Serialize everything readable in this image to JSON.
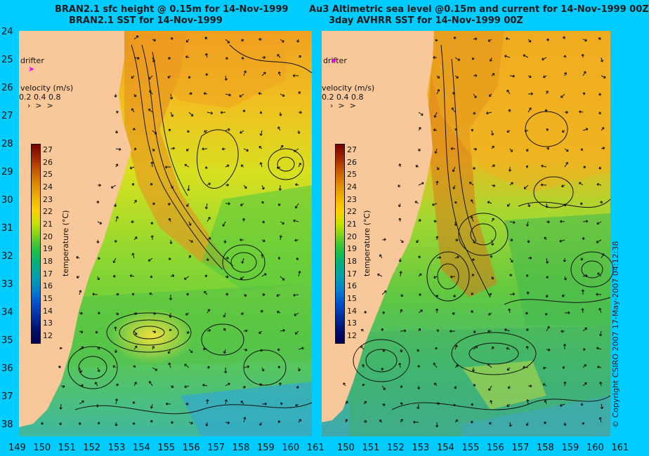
{
  "left_panel": {
    "title_line1": "BRAN2.1 sfc height @ 0.15m for 14-Nov-1999",
    "title_line2": "BRAN2.1 SST for 14-Nov-1999",
    "drifter_label": "drifter",
    "velocity_label": "velocity (m/s)",
    "velocity_values": "0.2 0.4 0.8",
    "colorbar_title": "temperature (°C)"
  },
  "right_panel": {
    "title_line1": "Au3 Altimetric sea level  @0.15m and current for 14-Nov-1999 00Z",
    "title_line2": "3day AVHRR SST for 14-Nov-1999 00Z",
    "drifter_label": "drifter",
    "velocity_label": "velocity (m/s)",
    "velocity_values": "0.2 0.4 0.8",
    "colorbar_title": "temperature (°C)"
  },
  "y_ticks": [
    "24",
    "25",
    "26",
    "27",
    "28",
    "29",
    "30",
    "31",
    "32",
    "33",
    "34",
    "35",
    "36",
    "37",
    "38"
  ],
  "x_ticks_left": [
    "149",
    "150",
    "151",
    "152",
    "153",
    "154",
    "155",
    "156",
    "157",
    "158",
    "159",
    "160",
    "161"
  ],
  "x_ticks_right": [
    "150",
    "151",
    "152",
    "153",
    "154",
    "155",
    "156",
    "157",
    "158",
    "159",
    "160",
    "161"
  ],
  "colorbar_ticks": [
    "27",
    "26",
    "25",
    "24",
    "23",
    "22",
    "21",
    "20",
    "19",
    "18",
    "17",
    "16",
    "15",
    "14",
    "13",
    "12"
  ],
  "colorbar_colors": [
    "#7a0000",
    "#a02800",
    "#c85a00",
    "#e08a00",
    "#f0b000",
    "#ffd000",
    "#c8e000",
    "#70d020",
    "#20c040",
    "#00b080",
    "#00a0b0",
    "#0080d0",
    "#0050d0",
    "#0030a0",
    "#001070",
    "#000050"
  ],
  "copyright": "© Copyright CSIRO 2007   17-May-2007 04:12:38",
  "colors": {
    "background": "#00ccff",
    "land": "#f8c89a",
    "drifter": "#ff00ff"
  }
}
